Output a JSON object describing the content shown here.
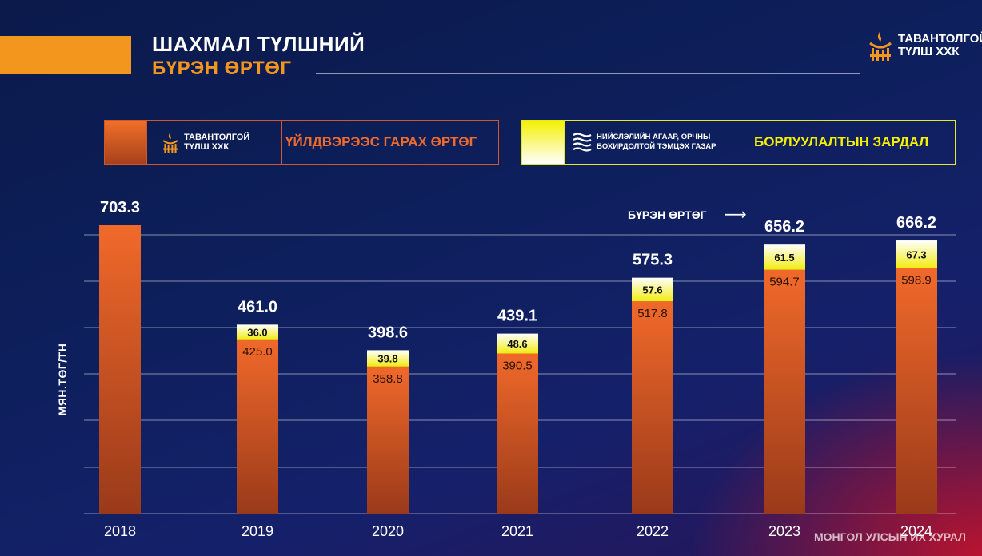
{
  "header": {
    "title_line1": "ШАХМАЛ ТҮЛШНИЙ",
    "title_line2": "БҮРЭН ӨРТӨГ",
    "brand_line1": "ТАВАНТОЛГОЙ",
    "brand_line2": "ТҮЛШ ХХК"
  },
  "legend": {
    "item1_brand_line1": "ТАВАНТОЛГОЙ",
    "item1_brand_line2": "ТҮЛШ ХХК",
    "item1_label": "ҮЙЛДВЭРЭЭС ГАРАХ ӨРТӨГ",
    "item1_color": "#e8622a",
    "item2_agency_line1": "НИЙСЛЭЛИЙН АГААР, ОРЧНЫ",
    "item2_agency_line2": "БОХИРДОЛТОЙ ТЭМЦЭХ ГАЗАР",
    "item2_label": "БОРЛУУЛАЛТЫН ЗАРДАЛ",
    "item2_color": "#f4f000"
  },
  "footer": {
    "text": "МОНГОЛ УЛСЫН ИХ ХУРАЛ"
  },
  "chart_data": {
    "type": "bar",
    "stacked": true,
    "categories": [
      "2018",
      "2019",
      "2020",
      "2021",
      "2022",
      "2023",
      "2024"
    ],
    "series": [
      {
        "name": "ҮЙЛДВЭРЭЭС ГАРАХ ӨРТӨГ",
        "values": [
          703.3,
          425.0,
          358.8,
          390.5,
          517.8,
          594.7,
          598.9
        ],
        "labels": [
          "",
          "425.0",
          "358.8",
          "390.5",
          "517.8",
          "594.7",
          "598.9"
        ]
      },
      {
        "name": "БОРЛУУЛАЛТЫН ЗАРДАЛ",
        "values": [
          0,
          36.0,
          39.8,
          48.6,
          57.6,
          61.5,
          67.3
        ],
        "labels": [
          "",
          "36.0",
          "39.8",
          "48.6",
          "57.6",
          "61.5",
          "67.3"
        ]
      }
    ],
    "totals": [
      "703.3",
      "461.0",
      "398.6",
      "439.1",
      "575.3",
      "656.2",
      "666.2"
    ],
    "annotation": "БҮРЭН ӨРТӨГ",
    "annotation_arrow": "⟶",
    "ylabel": "МЯН.ТӨГ/ТН",
    "ylim": [
      0,
      720
    ],
    "grid": true
  }
}
